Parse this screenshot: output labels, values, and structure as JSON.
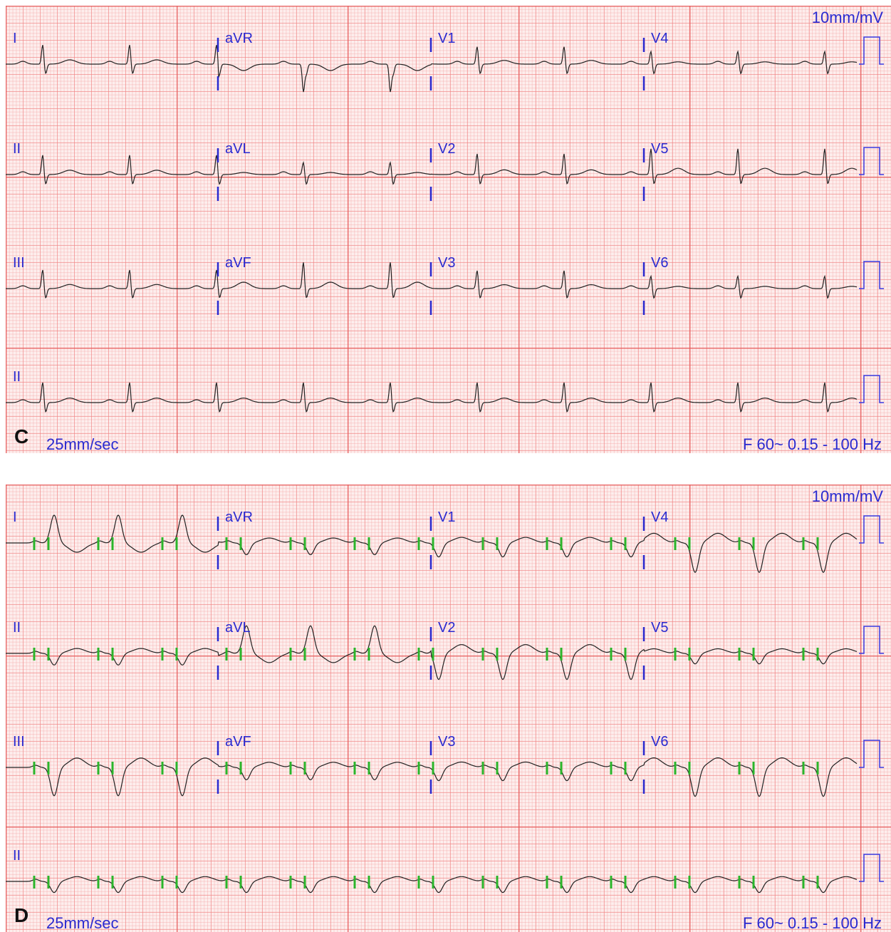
{
  "panels": [
    {
      "label": "C",
      "scale": "10mm/mV",
      "speed": "25mm/sec",
      "filter": "F 60~ 0.15 - 100 Hz",
      "leads": [
        [
          "I",
          "aVR",
          "V1",
          "V4"
        ],
        [
          "II",
          "aVL",
          "V2",
          "V5"
        ],
        [
          "III",
          "aVF",
          "V3",
          "V6"
        ],
        [
          "II"
        ]
      ]
    },
    {
      "label": "D",
      "scale": "10mm/mV",
      "speed": "25mm/sec",
      "filter": "F 60~ 0.15 - 100 Hz",
      "leads": [
        [
          "I",
          "aVR",
          "V1",
          "V4"
        ],
        [
          "II",
          "aVL",
          "V2",
          "V5"
        ],
        [
          "III",
          "aVF",
          "V3",
          "V6"
        ],
        [
          "II"
        ]
      ]
    }
  ]
}
